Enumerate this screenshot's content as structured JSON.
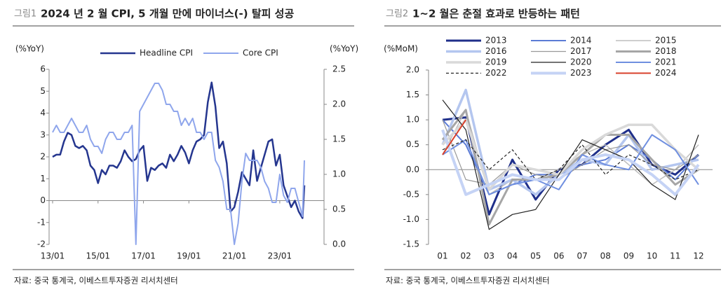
{
  "chart_data": [
    {
      "type": "line",
      "figure_label": "그림1",
      "title": "2024 년 2 월 CPI, 5 개월 만에 마이너스(-) 탈피 성공",
      "y_label": "(%YoY)",
      "y2_label": "(%YoY)",
      "source": "자료: 중국 통계국, 이베스트투자증권 리서치센터",
      "x": [
        "13/01",
        "13/03",
        "13/05",
        "13/07",
        "13/09",
        "13/11",
        "14/01",
        "14/03",
        "14/05",
        "14/07",
        "14/09",
        "14/11",
        "15/01",
        "15/03",
        "15/05",
        "15/07",
        "15/09",
        "15/11",
        "16/01",
        "16/03",
        "16/05",
        "16/07",
        "16/09",
        "16/11",
        "17/01",
        "17/03",
        "17/05",
        "17/07",
        "17/09",
        "17/11",
        "18/01",
        "18/03",
        "18/05",
        "18/07",
        "18/09",
        "18/11",
        "19/01",
        "19/03",
        "19/05",
        "19/07",
        "19/09",
        "19/11",
        "20/01",
        "20/03",
        "20/05",
        "20/07",
        "20/09",
        "20/11",
        "21/01",
        "21/03",
        "21/05",
        "21/07",
        "21/09",
        "21/11",
        "22/01",
        "22/03",
        "22/05",
        "22/07",
        "22/09",
        "22/11",
        "23/01",
        "23/03",
        "23/05",
        "23/07",
        "23/09",
        "23/11",
        "24/01",
        "24/02"
      ],
      "xlim": [
        "13/01",
        "24/02"
      ],
      "xticks": [
        "13/01",
        "15/01",
        "17/01",
        "19/01",
        "21/01",
        "23/01"
      ],
      "ylim": [
        -2,
        6
      ],
      "yticks": [
        6,
        5,
        4,
        3,
        2,
        1,
        0,
        -1,
        -2
      ],
      "y2lim": [
        0,
        2.5
      ],
      "y2ticks": [
        {
          "value": 2.5,
          "label": "2.5"
        },
        {
          "value": 2,
          "label": "2.0"
        },
        {
          "value": 1.5,
          "label": "1.5"
        },
        {
          "value": 1,
          "label": "1.0"
        },
        {
          "value": 0.5,
          "label": "0.5"
        },
        {
          "value": 0,
          "label": "0.0"
        }
      ],
      "series": [
        {
          "name": "Headline CPI",
          "color": "#25368f",
          "width": 2.5,
          "values": [
            2.0,
            2.1,
            2.1,
            2.7,
            3.1,
            3.0,
            2.5,
            2.4,
            2.5,
            2.3,
            1.6,
            1.4,
            0.8,
            1.4,
            1.2,
            1.6,
            1.6,
            1.5,
            1.8,
            2.3,
            2.0,
            1.8,
            1.9,
            2.3,
            2.5,
            0.9,
            1.5,
            1.4,
            1.6,
            1.7,
            1.5,
            2.1,
            1.8,
            2.1,
            2.5,
            2.2,
            1.7,
            2.3,
            2.7,
            2.8,
            3.0,
            4.5,
            5.4,
            4.3,
            2.4,
            2.7,
            1.7,
            -0.5,
            -0.3,
            0.4,
            1.3,
            1.0,
            0.7,
            2.3,
            0.9,
            1.5,
            2.1,
            2.7,
            2.8,
            1.6,
            2.1,
            0.7,
            0.2,
            -0.3,
            0.0,
            -0.5,
            -0.8,
            0.7
          ]
        },
        {
          "name": "Core CPI",
          "color": "#8fa6ec",
          "width": 2,
          "axis": "y2",
          "values": [
            1.6,
            1.7,
            1.6,
            1.6,
            1.7,
            1.8,
            1.7,
            1.6,
            1.6,
            1.7,
            1.5,
            1.4,
            1.4,
            1.3,
            1.5,
            1.6,
            1.6,
            1.5,
            1.5,
            1.6,
            1.6,
            1.7,
            0.0,
            1.9,
            2.0,
            2.1,
            2.2,
            2.3,
            2.3,
            2.2,
            2.0,
            2.0,
            1.9,
            1.9,
            1.7,
            1.8,
            1.7,
            1.8,
            1.6,
            1.6,
            1.5,
            1.6,
            1.6,
            1.2,
            1.1,
            0.9,
            0.5,
            0.5,
            0.0,
            0.3,
            0.9,
            1.3,
            1.2,
            1.2,
            1.2,
            1.1,
            0.9,
            0.8,
            0.6,
            0.6,
            1.0,
            0.7,
            0.6,
            0.8,
            0.8,
            0.6,
            0.4,
            1.2
          ]
        }
      ]
    },
    {
      "type": "line",
      "figure_label": "그림2",
      "title": "1~2 월은 춘절 효과로 반등하는 패턴",
      "y_label": "(%MoM)",
      "source": "자료: 중국 통계국, 이베스트투자증권 리서치센터",
      "categories": [
        "01",
        "02",
        "03",
        "04",
        "05",
        "06",
        "07",
        "08",
        "09",
        "10",
        "11",
        "12"
      ],
      "ylim": [
        -1.5,
        2.0
      ],
      "yticks": [
        {
          "value": 2,
          "label": "2.0"
        },
        {
          "value": 1.5,
          "label": "1.5"
        },
        {
          "value": 1,
          "label": "1.0"
        },
        {
          "value": 0.5,
          "label": "0.5"
        },
        {
          "value": 0,
          "label": "0.0"
        },
        {
          "value": -0.5,
          "label": "-0.5"
        },
        {
          "value": -1,
          "label": "-1.0"
        },
        {
          "value": -1.5,
          "label": "-1.5"
        }
      ],
      "series": [
        {
          "name": "2013",
          "color": "#1f2f8a",
          "width": 3,
          "values": [
            1.0,
            1.05,
            -0.9,
            0.2,
            -0.6,
            0.0,
            0.1,
            0.5,
            0.8,
            0.1,
            -0.1,
            0.3
          ]
        },
        {
          "name": "2014",
          "color": "#5b7bd5",
          "width": 2,
          "values": [
            1.0,
            0.5,
            -0.5,
            -0.3,
            -0.1,
            -0.1,
            0.1,
            0.2,
            0.5,
            0.2,
            -0.2,
            0.3
          ]
        },
        {
          "name": "2015",
          "color": "#bdbdbd",
          "width": 1.5,
          "values": [
            0.3,
            1.2,
            -0.5,
            -0.2,
            -0.2,
            0.0,
            0.3,
            0.5,
            0.1,
            -0.3,
            0.0,
            0.5
          ]
        },
        {
          "name": "2016",
          "color": "#b4c6ef",
          "width": 3.5,
          "values": [
            0.5,
            1.6,
            -0.4,
            -0.2,
            -0.5,
            -0.1,
            0.2,
            0.1,
            0.7,
            0.0,
            0.1,
            0.2
          ]
        },
        {
          "name": "2017",
          "color": "#9a9a9a",
          "width": 1.2,
          "values": [
            1.0,
            -0.2,
            -0.3,
            0.1,
            -0.1,
            -0.2,
            0.1,
            0.4,
            0.5,
            0.1,
            0.0,
            0.3
          ]
        },
        {
          "name": "2018",
          "color": "#a6a6a6",
          "width": 3,
          "values": [
            0.6,
            1.2,
            -1.1,
            -0.2,
            -0.2,
            -0.1,
            0.3,
            0.7,
            0.7,
            0.2,
            -0.3,
            0.0
          ]
        },
        {
          "name": "2019",
          "color": "#d9d9d9",
          "width": 3.5,
          "values": [
            0.5,
            1.0,
            -0.4,
            0.1,
            0.0,
            -0.1,
            0.4,
            0.7,
            0.9,
            0.9,
            0.4,
            0.0
          ]
        },
        {
          "name": "2020",
          "color": "#222222",
          "width": 1.2,
          "values": [
            1.4,
            0.8,
            -1.2,
            -0.9,
            -0.8,
            -0.1,
            0.6,
            0.4,
            0.2,
            -0.3,
            -0.6,
            0.7
          ]
        },
        {
          "name": "2021",
          "color": "#6f8fe0",
          "width": 2,
          "values": [
            0.3,
            0.6,
            -0.5,
            -0.3,
            -0.2,
            -0.4,
            0.3,
            0.1,
            0.0,
            0.7,
            0.4,
            -0.3
          ]
        },
        {
          "name": "2022",
          "color": "#222222",
          "width": 1.2,
          "dashed": true,
          "values": [
            0.4,
            0.6,
            0.0,
            0.4,
            -0.2,
            0.0,
            0.5,
            -0.1,
            0.3,
            0.1,
            -0.2,
            0.0
          ]
        },
        {
          "name": "2023",
          "color": "#c5d3f5",
          "width": 4,
          "values": [
            0.8,
            -0.5,
            -0.3,
            -0.1,
            -0.2,
            -0.2,
            0.2,
            0.3,
            0.2,
            -0.1,
            -0.5,
            0.1
          ]
        },
        {
          "name": "2024",
          "color": "#d9412b",
          "width": 2,
          "values": [
            0.3,
            1.0,
            null,
            null,
            null,
            null,
            null,
            null,
            null,
            null,
            null,
            null
          ]
        }
      ]
    }
  ]
}
